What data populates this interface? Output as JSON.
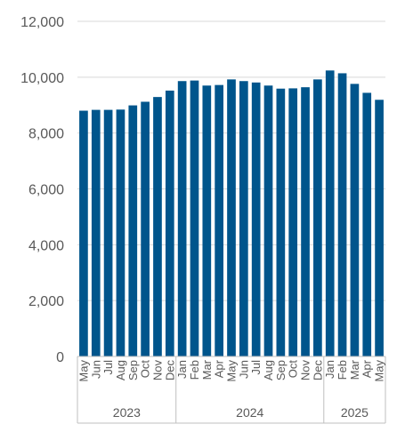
{
  "chart_data": {
    "type": "bar",
    "title": "",
    "xlabel": "",
    "ylabel": "",
    "ylim": [
      0,
      12000
    ],
    "yticks": [
      "0",
      "2,000",
      "4,000",
      "6,000",
      "8,000",
      "10,000",
      "12,000"
    ],
    "grid": true,
    "legend": "none",
    "colors": {
      "bar": "#00558C",
      "grid": "#D9D9D9",
      "axis": "#BFBFBF",
      "text": "#595959"
    },
    "categories": [
      "May",
      "Jun",
      "Jul",
      "Aug",
      "Sep",
      "Oct",
      "Nov",
      "Dec",
      "Jan",
      "Feb",
      "Mar",
      "Apr",
      "May",
      "Jun",
      "Jul",
      "Aug",
      "Sep",
      "Oct",
      "Nov",
      "Dec",
      "Jan",
      "Feb",
      "Mar",
      "Apr",
      "May"
    ],
    "values": [
      8800,
      8830,
      8830,
      8840,
      8990,
      9120,
      9290,
      9520,
      9860,
      9880,
      9700,
      9720,
      9920,
      9860,
      9810,
      9700,
      9590,
      9600,
      9640,
      9920,
      10240,
      10140,
      9760,
      9440,
      9190
    ],
    "year_groups": [
      {
        "label": "2023",
        "start": 0,
        "count": 8
      },
      {
        "label": "2024",
        "start": 8,
        "count": 12
      },
      {
        "label": "2025",
        "start": 20,
        "count": 5
      }
    ]
  }
}
